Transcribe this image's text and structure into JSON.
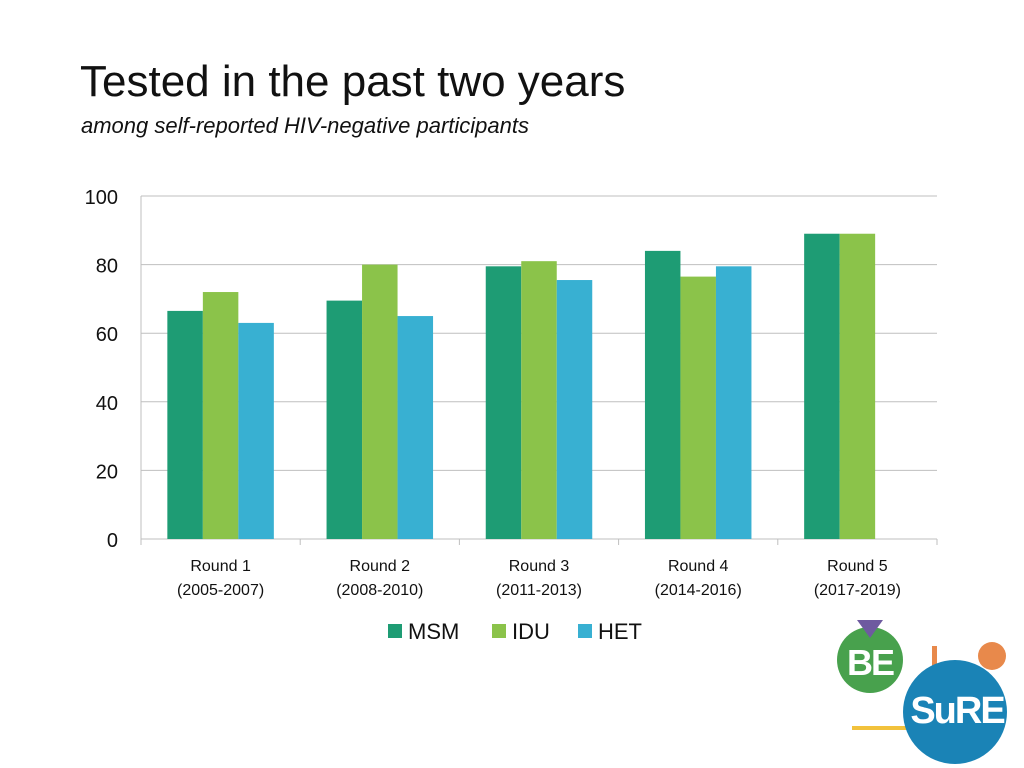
{
  "title": "Tested in the past two years",
  "subtitle": "among self-reported HIV-negative participants",
  "chart_data": {
    "type": "bar",
    "title": "Tested in the past two years",
    "subtitle": "among self-reported HIV-negative participants",
    "categories": [
      [
        "Round 1",
        "(2005-2007)"
      ],
      [
        "Round 2",
        "(2008-2010)"
      ],
      [
        "Round 3",
        "(2011-2013)"
      ],
      [
        "Round 4",
        "(2014-2016)"
      ],
      [
        "Round 5",
        "(2017-2019)"
      ]
    ],
    "series": [
      {
        "name": "MSM",
        "color": "#1e9c74",
        "values": [
          66.5,
          69.5,
          79.5,
          84,
          89
        ]
      },
      {
        "name": "IDU",
        "color": "#8bc34a",
        "values": [
          72,
          80,
          81,
          76.5,
          89
        ]
      },
      {
        "name": "HET",
        "color": "#38b0d2",
        "values": [
          63,
          65,
          75.5,
          79.5,
          null
        ]
      }
    ],
    "ylim": [
      0,
      100
    ],
    "yticks": [
      0,
      20,
      40,
      60,
      80,
      100
    ],
    "xlabel": "",
    "ylabel": "",
    "grid": true,
    "legend": "bottom"
  },
  "logo": {
    "text_top": "BE",
    "text_bottom": "SuRE",
    "colors": {
      "green": "#48a14d",
      "blue": "#1a83b6",
      "orange": "#e8894b",
      "purple": "#6e5aa0",
      "yellow": "#f2c23c",
      "white": "#ffffff"
    }
  }
}
